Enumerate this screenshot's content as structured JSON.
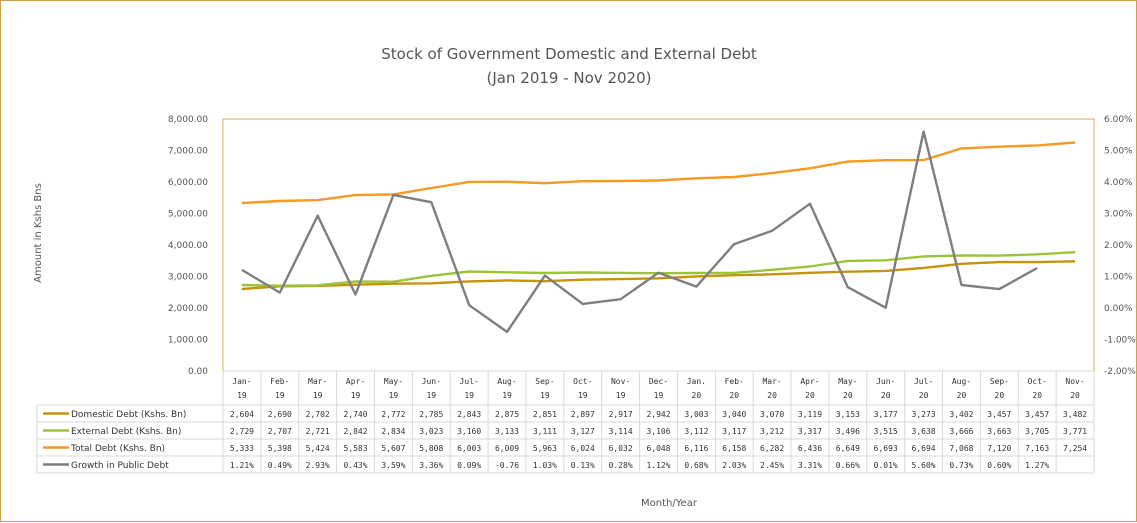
{
  "chart_data": {
    "type": "line",
    "title": "Stock of Government Domestic and External Debt",
    "subtitle": "(Jan 2019 - Nov 2020)",
    "ylabel": "Amount in Kshs Bns",
    "xlabel": "Month/Year",
    "ylim": [
      0,
      8000
    ],
    "y_ticks": [
      "0.00",
      "1,000.00",
      "2,000.00",
      "3,000.00",
      "4,000.00",
      "5,000.00",
      "6,000.00",
      "7,000.00",
      "8,000.00"
    ],
    "y2lim": [
      -2,
      6
    ],
    "y2_ticks": [
      "-2.00%",
      "-1.00%",
      "0.00%",
      "1.00%",
      "2.00%",
      "3.00%",
      "4.00%",
      "5.00%",
      "6.00%"
    ],
    "grid": false,
    "legend": "data-table",
    "categories": [
      [
        "Jan-",
        "19"
      ],
      [
        "Feb-",
        "19"
      ],
      [
        "Mar-",
        "19"
      ],
      [
        "Apr-",
        "19"
      ],
      [
        "May-",
        "19"
      ],
      [
        "Jun-",
        "19"
      ],
      [
        "Jul-",
        "19"
      ],
      [
        "Aug-",
        "19"
      ],
      [
        "Sep-",
        "19"
      ],
      [
        "Oct-",
        "19"
      ],
      [
        "Nov-",
        "19"
      ],
      [
        "Dec-",
        "19"
      ],
      [
        "Jan.",
        "20"
      ],
      [
        "Feb-",
        "20"
      ],
      [
        "Mar-",
        "20"
      ],
      [
        "Apr-",
        "20"
      ],
      [
        "May-",
        "20"
      ],
      [
        "Jun-",
        "20"
      ],
      [
        "Jul-",
        "20"
      ],
      [
        "Aug-",
        "20"
      ],
      [
        "Sep-",
        "20"
      ],
      [
        "Oct-",
        "20"
      ],
      [
        "Nov-",
        "20"
      ]
    ],
    "series": [
      {
        "name": "Domestic Debt (Kshs. Bn)",
        "color": "#c5940e",
        "axis": "left",
        "values": [
          2604,
          2690,
          2702,
          2740,
          2772,
          2785,
          2843,
          2875,
          2851,
          2897,
          2917,
          2942,
          3003,
          3040,
          3070,
          3119,
          3153,
          3177,
          3273,
          3402,
          3457,
          3457,
          3482
        ],
        "labels": [
          "2,604",
          "2,690",
          "2,702",
          "2,740",
          "2,772",
          "2,785",
          "2,843",
          "2,875",
          "2,851",
          "2,897",
          "2,917",
          "2,942",
          "3,003",
          "3,040",
          "3,070",
          "3,119",
          "3,153",
          "3,177",
          "3,273",
          "3,402",
          "3,457",
          "3,457",
          "3,482"
        ]
      },
      {
        "name": "External Debt (Kshs. Bn)",
        "color": "#9dc33b",
        "axis": "left",
        "values": [
          2729,
          2707,
          2721,
          2842,
          2834,
          3023,
          3160,
          3133,
          3111,
          3127,
          3114,
          3106,
          3112,
          3117,
          3212,
          3317,
          3496,
          3515,
          3638,
          3666,
          3663,
          3705,
          3771
        ],
        "labels": [
          "2,729",
          "2,707",
          "2,721",
          "2,842",
          "2,834",
          "3,023",
          "3,160",
          "3,133",
          "3,111",
          "3,127",
          "3,114",
          "3,106",
          "3,112",
          "3,117",
          "3,212",
          "3,317",
          "3,496",
          "3,515",
          "3,638",
          "3,666",
          "3,663",
          "3,705",
          "3,771"
        ]
      },
      {
        "name": "Total Debt (Kshs. Bn)",
        "color": "#f59a23",
        "axis": "left",
        "values": [
          5333,
          5398,
          5424,
          5583,
          5607,
          5808,
          6003,
          6009,
          5963,
          6024,
          6032,
          6048,
          6116,
          6158,
          6282,
          6436,
          6649,
          6693,
          6694,
          7068,
          7120,
          7163,
          7254
        ],
        "labels": [
          "5,333",
          "5,398",
          "5,424",
          "5,583",
          "5,607",
          "5,808",
          "6,003",
          "6,009",
          "5,963",
          "6,024",
          "6,032",
          "6,048",
          "6,116",
          "6,158",
          "6,282",
          "6,436",
          "6,649",
          "6,693",
          "6,694",
          "7,068",
          "7,120",
          "7,163",
          "7,254"
        ]
      },
      {
        "name": "Growth in Public Debt",
        "color": "#7f7f7f",
        "axis": "right",
        "values": [
          1.21,
          0.49,
          2.93,
          0.43,
          3.59,
          3.36,
          0.09,
          -0.76,
          1.03,
          0.13,
          0.28,
          1.12,
          0.68,
          2.03,
          2.45,
          3.31,
          0.66,
          0.01,
          5.6,
          0.73,
          0.6,
          1.27,
          null
        ],
        "labels": [
          "1.21%",
          "0.49%",
          "2.93%",
          "0.43%",
          "3.59%",
          "3.36%",
          "0.09%",
          "-0.76",
          "1.03%",
          "0.13%",
          "0.28%",
          "1.12%",
          "0.68%",
          "2.03%",
          "2.45%",
          "3.31%",
          "0.66%",
          "0.01%",
          "5.60%",
          "0.73%",
          "0.60%",
          "1.27%",
          ""
        ]
      }
    ]
  }
}
